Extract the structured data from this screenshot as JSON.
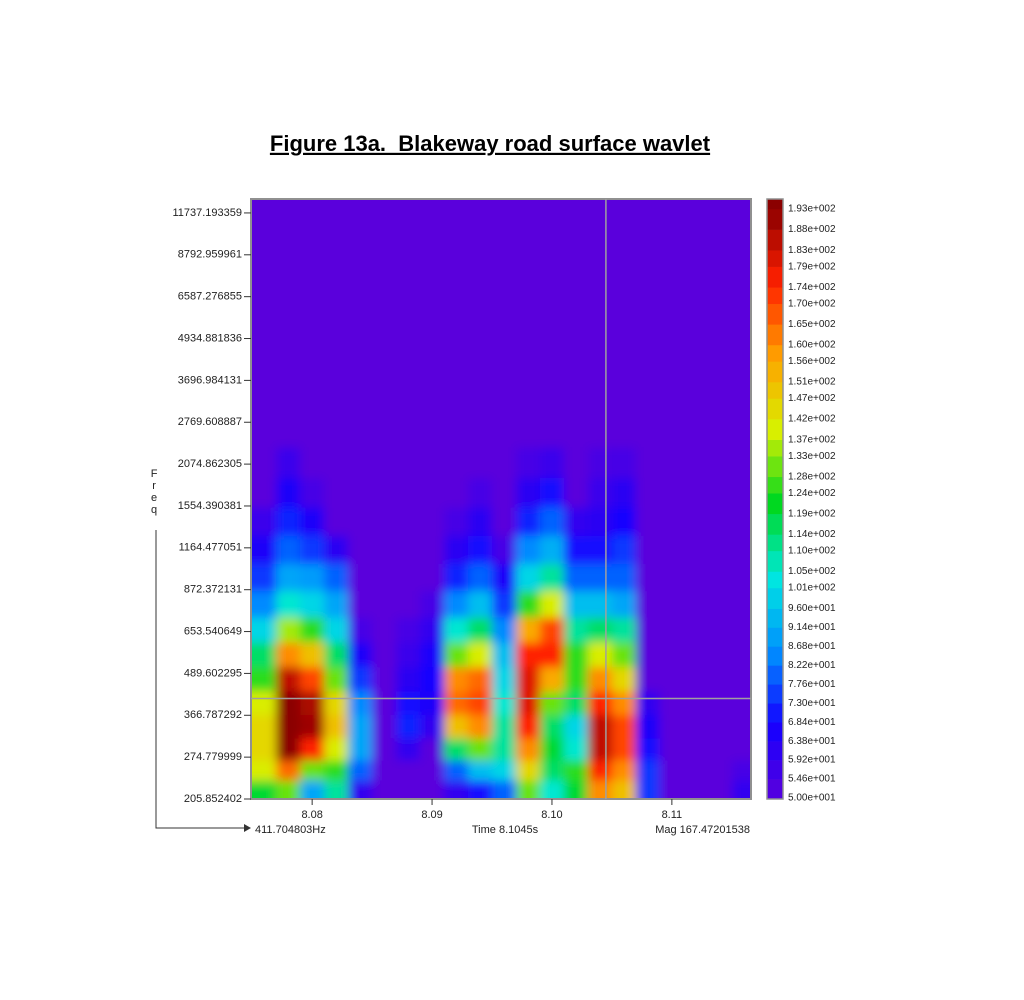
{
  "chart_data": {
    "type": "heatmap",
    "title": "Figure 13a.  Blakeway road surface wavlet",
    "ylabel": "Freq",
    "x": [
      8.076,
      8.078,
      8.08,
      8.082,
      8.084,
      8.086,
      8.088,
      8.09,
      8.092,
      8.094,
      8.096,
      8.098,
      8.1,
      8.102,
      8.104,
      8.106,
      8.108,
      8.11,
      8.112,
      8.114,
      8.116
    ],
    "y": [
      220,
      250,
      290,
      340,
      400,
      470,
      560,
      660,
      790,
      950,
      1150,
      1400,
      1700,
      2100,
      2600,
      7000
    ],
    "z": [
      [
        120,
        130,
        90,
        110,
        60,
        50,
        50,
        50,
        60,
        70,
        80,
        130,
        105,
        120,
        160,
        150,
        75,
        50,
        50,
        50,
        60
      ],
      [
        140,
        165,
        130,
        125,
        80,
        50,
        50,
        50,
        80,
        95,
        100,
        145,
        115,
        125,
        175,
        160,
        75,
        50,
        50,
        50,
        55
      ],
      [
        145,
        193,
        175,
        140,
        90,
        50,
        60,
        50,
        115,
        130,
        110,
        160,
        120,
        105,
        185,
        170,
        70,
        50,
        50,
        50,
        50
      ],
      [
        145,
        193,
        190,
        150,
        90,
        50,
        72,
        60,
        150,
        160,
        110,
        175,
        115,
        100,
        185,
        170,
        65,
        50,
        50,
        50,
        50
      ],
      [
        140,
        193,
        188,
        145,
        85,
        50,
        70,
        65,
        165,
        170,
        105,
        180,
        130,
        115,
        175,
        160,
        60,
        50,
        50,
        50,
        50
      ],
      [
        125,
        185,
        170,
        130,
        75,
        50,
        62,
        68,
        160,
        165,
        100,
        180,
        155,
        125,
        160,
        145,
        50,
        50,
        50,
        50,
        50
      ],
      [
        115,
        160,
        150,
        115,
        65,
        50,
        58,
        66,
        130,
        140,
        95,
        175,
        175,
        125,
        140,
        130,
        50,
        50,
        50,
        50,
        50
      ],
      [
        100,
        135,
        125,
        100,
        55,
        50,
        55,
        60,
        105,
        115,
        85,
        155,
        170,
        110,
        115,
        110,
        50,
        50,
        50,
        50,
        50
      ],
      [
        85,
        105,
        100,
        90,
        50,
        50,
        50,
        55,
        85,
        95,
        75,
        125,
        140,
        95,
        95,
        90,
        50,
        50,
        50,
        50,
        50
      ],
      [
        75,
        90,
        88,
        80,
        50,
        50,
        50,
        50,
        72,
        80,
        65,
        100,
        110,
        80,
        80,
        80,
        50,
        50,
        50,
        50,
        50
      ],
      [
        65,
        80,
        75,
        62,
        50,
        50,
        50,
        50,
        62,
        70,
        55,
        85,
        92,
        70,
        70,
        75,
        50,
        50,
        50,
        50,
        50
      ],
      [
        58,
        72,
        65,
        50,
        50,
        50,
        50,
        50,
        55,
        62,
        50,
        72,
        80,
        60,
        62,
        68,
        50,
        50,
        50,
        50,
        50
      ],
      [
        50,
        65,
        55,
        50,
        50,
        50,
        50,
        50,
        50,
        55,
        50,
        62,
        70,
        50,
        58,
        62,
        50,
        50,
        50,
        50,
        50
      ],
      [
        50,
        58,
        50,
        50,
        50,
        50,
        50,
        50,
        50,
        50,
        50,
        55,
        58,
        50,
        54,
        55,
        50,
        50,
        50,
        50,
        50
      ],
      [
        50,
        50,
        50,
        50,
        50,
        50,
        50,
        50,
        50,
        50,
        50,
        50,
        50,
        50,
        50,
        50,
        50,
        50,
        50,
        50,
        50
      ],
      [
        50,
        50,
        50,
        50,
        50,
        50,
        50,
        50,
        50,
        50,
        50,
        50,
        50,
        50,
        50,
        50,
        50,
        50,
        50,
        50,
        50
      ]
    ],
    "xlim": [
      8.0749,
      8.1166
    ],
    "xticks": [
      8.08,
      8.09,
      {
        "value": 8.1,
        "label": "8.10"
      },
      8.11
    ],
    "ylim": [
      205.852402,
      12922
    ],
    "yscale": "log",
    "yticks": [
      205.852402,
      274.779999,
      366.787292,
      489.602295,
      653.540649,
      872.372131,
      1164.477051,
      1554.390381,
      2074.862305,
      2769.608887,
      3696.984131,
      4934.881836,
      6587.276855,
      8792.959961,
      11737.193359
    ],
    "colorscale": [
      "#5a00dc",
      "#1400ff",
      "#0090ff",
      "#00e8e0",
      "#00d820",
      "#d8f000",
      "#ffa000",
      "#ff2000",
      "#8b0000"
    ],
    "zlim": [
      50,
      193
    ],
    "zticks": [
      {
        "value": 50,
        "label": "5.00e+001"
      },
      {
        "value": 54.6,
        "label": "5.46e+001"
      },
      {
        "value": 59.2,
        "label": "5.92e+001"
      },
      {
        "value": 63.8,
        "label": "6.38e+001"
      },
      {
        "value": 68.4,
        "label": "6.84e+001"
      },
      {
        "value": 73,
        "label": "7.30e+001"
      },
      {
        "value": 77.6,
        "label": "7.76e+001"
      },
      {
        "value": 82.2,
        "label": "8.22e+001"
      },
      {
        "value": 86.8,
        "label": "8.68e+001"
      },
      {
        "value": 91.4,
        "label": "9.14e+001"
      },
      {
        "value": 96,
        "label": "9.60e+001"
      },
      {
        "value": 101,
        "label": "1.01e+002"
      },
      {
        "value": 105,
        "label": "1.05e+002"
      },
      {
        "value": 110,
        "label": "1.10e+002"
      },
      {
        "value": 114,
        "label": "1.14e+002"
      },
      {
        "value": 119,
        "label": "1.19e+002"
      },
      {
        "value": 124,
        "label": "1.24e+002"
      },
      {
        "value": 128,
        "label": "1.28e+002"
      },
      {
        "value": 133,
        "label": "1.33e+002"
      },
      {
        "value": 137,
        "label": "1.37e+002"
      },
      {
        "value": 142,
        "label": "1.42e+002"
      },
      {
        "value": 147,
        "label": "1.47e+002"
      },
      {
        "value": 151,
        "label": "1.51e+002"
      },
      {
        "value": 156,
        "label": "1.56e+002"
      },
      {
        "value": 160,
        "label": "1.60e+002"
      },
      {
        "value": 165,
        "label": "1.65e+002"
      },
      {
        "value": 170,
        "label": "1.70e+002"
      },
      {
        "value": 174,
        "label": "1.74e+002"
      },
      {
        "value": 179,
        "label": "1.79e+002"
      },
      {
        "value": 183,
        "label": "1.83e+002"
      },
      {
        "value": 188,
        "label": "1.88e+002"
      },
      {
        "value": 193,
        "label": "1.93e+002"
      }
    ],
    "cursor": {
      "time": 8.1045,
      "freq": 411.704803,
      "mag": 167.47201538,
      "freq_label": "411.704803Hz",
      "time_label": "Time 8.1045s",
      "mag_label": "Mag 167.47201538"
    },
    "crosshair_color": "#a0a0a0"
  }
}
